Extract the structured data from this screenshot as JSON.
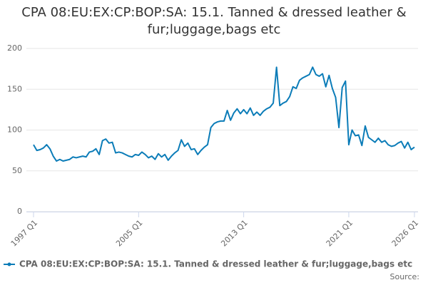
{
  "chart_data": {
    "type": "line",
    "title": "CPA 08:EU:EX:CP:BOP:SA: 15.1. Tanned & dressed leather & fur;luggage,bags etc",
    "categories": [
      "1997 Q1",
      null,
      null,
      null,
      null,
      null,
      null,
      null,
      null,
      null,
      null,
      null,
      null,
      null,
      null,
      null,
      null,
      null,
      null,
      null,
      null,
      null,
      null,
      null,
      null,
      null,
      null,
      null,
      null,
      null,
      null,
      null,
      "2005 Q1",
      null,
      null,
      null,
      null,
      null,
      null,
      null,
      null,
      null,
      null,
      null,
      null,
      null,
      null,
      null,
      null,
      null,
      null,
      null,
      null,
      null,
      null,
      null,
      null,
      null,
      null,
      null,
      null,
      null,
      null,
      null,
      "2013 Q1",
      null,
      null,
      null,
      null,
      null,
      null,
      null,
      null,
      null,
      null,
      null,
      null,
      null,
      null,
      null,
      null,
      null,
      null,
      null,
      null,
      null,
      null,
      null,
      null,
      null,
      null,
      null,
      null,
      null,
      null,
      null,
      "2021 Q1",
      null,
      null,
      null,
      null,
      null,
      null,
      null,
      null,
      null,
      null,
      null,
      null,
      null,
      null,
      null,
      null,
      null,
      null,
      null,
      "2026 Q1"
    ],
    "series": [
      {
        "name": "CPA 08:EU:EX:CP:BOP:SA: 15.1. Tanned & dressed leather & fur;luggage,bags etc",
        "color": "#0b7cb8",
        "values": [
          82,
          75,
          76,
          78,
          82,
          77,
          68,
          62,
          64,
          62,
          63,
          64,
          67,
          66,
          67,
          68,
          67,
          73,
          74,
          77,
          70,
          87,
          89,
          84,
          85,
          72,
          73,
          72,
          70,
          68,
          67,
          70,
          69,
          73,
          70,
          66,
          68,
          64,
          71,
          67,
          70,
          63,
          68,
          72,
          75,
          88,
          80,
          84,
          76,
          77,
          70,
          75,
          79,
          82,
          103,
          108,
          110,
          111,
          111,
          124,
          112,
          121,
          126,
          120,
          125,
          120,
          127,
          118,
          122,
          118,
          123,
          126,
          128,
          133,
          177,
          130,
          133,
          135,
          141,
          153,
          151,
          161,
          164,
          166,
          168,
          177,
          168,
          166,
          169,
          153,
          167,
          151,
          140,
          103,
          152,
          160,
          82,
          100,
          93,
          94,
          81,
          105,
          91,
          88,
          85,
          90,
          85,
          87,
          82,
          80,
          81,
          84,
          86,
          78,
          85,
          76,
          79
        ]
      }
    ],
    "ylim": [
      0,
      200
    ],
    "yticks": [
      0,
      50,
      100,
      150,
      200
    ],
    "grid": true,
    "source": "Source:"
  }
}
